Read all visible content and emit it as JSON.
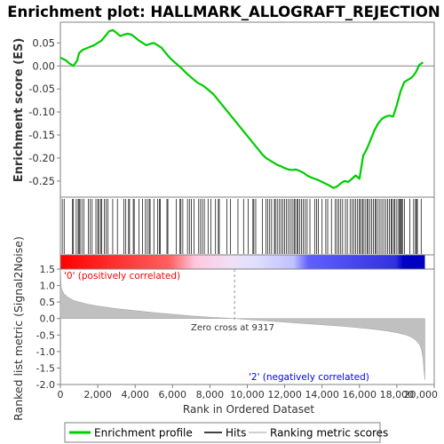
{
  "chart_data": {
    "type": "line",
    "title": "Enrichment plot: HALLMARK_ALLOGRAFT_REJECTION",
    "colors": {
      "enrichment": "#00cc00",
      "hits": "#000000",
      "ranking_fill": "#c0c0c0",
      "pos_label": "#ff0000",
      "neg_label": "#0000ff",
      "bar_red": "#ff0000",
      "bar_blue": "#0000ff"
    },
    "es_panel": {
      "ylabel": "Enrichment score (ES)",
      "ylim": [
        -0.285,
        0.095
      ],
      "yticks": [
        "0.05",
        "0.00",
        "-0.05",
        "-0.10",
        "-0.15",
        "-0.20",
        "-0.25"
      ],
      "ytick_values": [
        0.05,
        0.0,
        -0.05,
        -0.1,
        -0.15,
        -0.2,
        -0.25
      ],
      "series": [
        {
          "name": "Enrichment profile",
          "x": [
            0,
            300,
            500,
            700,
            900,
            1000,
            1200,
            1500,
            1800,
            2000,
            2200,
            2400,
            2600,
            2800,
            3000,
            3200,
            3400,
            3600,
            3800,
            4000,
            4200,
            4400,
            4600,
            4800,
            5000,
            5200,
            5400,
            5600,
            5800,
            6000,
            6200,
            6400,
            6600,
            6800,
            7000,
            7200,
            7400,
            7600,
            7800,
            8000,
            8200,
            8400,
            8600,
            8800,
            9000,
            9200,
            9400,
            9600,
            9800,
            10000,
            10200,
            10400,
            10600,
            10800,
            11000,
            11200,
            11400,
            11600,
            11800,
            12000,
            12200,
            12400,
            12600,
            12800,
            13000,
            13200,
            13400,
            13600,
            13800,
            14000,
            14200,
            14400,
            14600,
            14800,
            15000,
            15200,
            15400,
            15600,
            15800,
            16000,
            16200,
            16400,
            16600,
            16800,
            17000,
            17200,
            17400,
            17600,
            17800,
            18000,
            18200,
            18400,
            18600,
            18800,
            19000,
            19200,
            19400
          ],
          "y": [
            0.018,
            0.012,
            0.005,
            0.0,
            0.012,
            0.028,
            0.035,
            0.04,
            0.045,
            0.05,
            0.055,
            0.065,
            0.075,
            0.078,
            0.072,
            0.065,
            0.068,
            0.07,
            0.068,
            0.062,
            0.055,
            0.05,
            0.045,
            0.048,
            0.05,
            0.045,
            0.04,
            0.03,
            0.02,
            0.012,
            0.005,
            -0.002,
            -0.01,
            -0.018,
            -0.025,
            -0.032,
            -0.038,
            -0.042,
            -0.048,
            -0.055,
            -0.062,
            -0.072,
            -0.082,
            -0.092,
            -0.102,
            -0.112,
            -0.122,
            -0.132,
            -0.142,
            -0.152,
            -0.162,
            -0.172,
            -0.182,
            -0.192,
            -0.2,
            -0.205,
            -0.21,
            -0.215,
            -0.218,
            -0.222,
            -0.225,
            -0.226,
            -0.225,
            -0.228,
            -0.232,
            -0.238,
            -0.242,
            -0.245,
            -0.248,
            -0.252,
            -0.256,
            -0.26,
            -0.265,
            -0.262,
            -0.255,
            -0.25,
            -0.252,
            -0.245,
            -0.238,
            -0.245,
            -0.195,
            -0.18,
            -0.16,
            -0.14,
            -0.125,
            -0.115,
            -0.11,
            -0.108,
            -0.11,
            -0.085,
            -0.055,
            -0.035,
            -0.03,
            -0.025,
            -0.015,
            0.002,
            0.008
          ]
        }
      ]
    },
    "hits": [
      100,
      200,
      650,
      700,
      850,
      950,
      1000,
      1050,
      1150,
      1250,
      1500,
      1600,
      1700,
      1900,
      2000,
      2050,
      2150,
      2200,
      2350,
      2450,
      2550,
      2800,
      3050,
      3400,
      3500,
      3650,
      3700,
      3900,
      3950,
      4200,
      4400,
      4550,
      4650,
      4750,
      4800,
      5000,
      5200,
      5300,
      5350,
      5700,
      5750,
      6200,
      6400,
      6450,
      6550,
      6800,
      6900,
      7000,
      7150,
      7400,
      7500,
      7600,
      7700,
      7900,
      8050,
      8300,
      8450,
      8500,
      8900,
      9100,
      9500,
      9800,
      10050,
      10300,
      10350,
      10450,
      10800,
      11000,
      11100,
      11200,
      11300,
      11450,
      11500,
      11600,
      11700,
      11800,
      11900,
      12000,
      12100,
      12200,
      12300,
      12400,
      12500,
      12550,
      12650,
      12700,
      12800,
      12900,
      13000,
      13100,
      13200,
      13350,
      13600,
      13700,
      13800,
      14000,
      14200,
      14300,
      14500,
      14700,
      14800,
      14900,
      15000,
      15100,
      15250,
      15350,
      15500,
      15600,
      15700,
      15800,
      15900,
      16000,
      16050,
      16150,
      16200,
      16300,
      16400,
      16450,
      16550,
      16650,
      16750,
      16850,
      16900,
      17000,
      17100,
      17200,
      17300,
      17400,
      17500,
      17600,
      17700,
      17750,
      17850,
      17900,
      18000,
      18100,
      18150,
      18200,
      18250,
      18300,
      18400,
      18700,
      18900,
      19000,
      19050,
      19100,
      19300
    ],
    "ranking_panel": {
      "ylabel": "Ranked list metric (Signal2Noise)",
      "ylim": [
        -2.0,
        1.5
      ],
      "yticks": [
        "1.5",
        "1.0",
        "0.5",
        "0.0",
        "-0.5",
        "-1.0",
        "-1.5",
        "-2.0"
      ],
      "ytick_values": [
        1.5,
        1.0,
        0.5,
        0.0,
        -0.5,
        -1.0,
        -1.5,
        -2.0
      ],
      "x": [
        0,
        50,
        100,
        200,
        400,
        700,
        1000,
        1500,
        2000,
        3000,
        4000,
        5000,
        6000,
        7000,
        8000,
        9000,
        9317,
        10000,
        11000,
        12000,
        13000,
        14000,
        15000,
        16000,
        17000,
        17500,
        18000,
        18500,
        18800,
        19000,
        19200,
        19300,
        19400,
        19450,
        19500
      ],
      "values": [
        1.5,
        0.95,
        0.85,
        0.75,
        0.65,
        0.55,
        0.5,
        0.43,
        0.38,
        0.3,
        0.24,
        0.18,
        0.13,
        0.08,
        0.04,
        0.01,
        0.0,
        -0.03,
        -0.07,
        -0.11,
        -0.15,
        -0.19,
        -0.23,
        -0.28,
        -0.34,
        -0.38,
        -0.43,
        -0.5,
        -0.57,
        -0.65,
        -0.78,
        -0.9,
        -1.2,
        -1.6,
        -1.85
      ],
      "zero_cross_label": "Zero cross at 9317",
      "zero_cross_x": 9317,
      "pos_label": "'0' (positively correlated)",
      "neg_label": "'2' (negatively correlated)"
    },
    "xaxis": {
      "xlabel": "Rank in Ordered Dataset",
      "xlim": [
        0,
        20000
      ],
      "xticks": [
        "0",
        "2,000",
        "4,000",
        "6,000",
        "8,000",
        "10,000",
        "12,000",
        "14,000",
        "16,000",
        "18,000",
        "20,000"
      ],
      "xtick_values": [
        0,
        2000,
        4000,
        6000,
        8000,
        10000,
        12000,
        14000,
        16000,
        18000,
        20000
      ]
    },
    "dataset_size": 19500,
    "legend": {
      "placement": "bottom",
      "items": [
        {
          "label": "Enrichment profile",
          "color": "#00cc00"
        },
        {
          "label": "Hits",
          "color": "#000000"
        },
        {
          "label": "Ranking metric scores",
          "color": "#c0c0c0"
        }
      ]
    }
  }
}
